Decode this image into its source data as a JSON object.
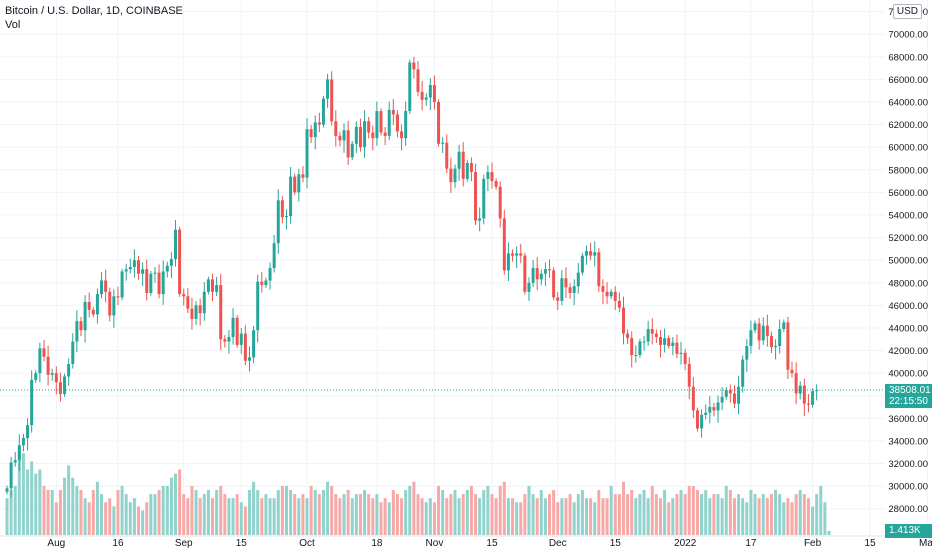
{
  "header": {
    "title": "Bitcoin / U.S. Dollar, 1D, COINBASE",
    "volume_label": "Vol",
    "currency": "USD"
  },
  "price_badge": {
    "price": "38508.01",
    "countdown": "22:15:50"
  },
  "volume_badge": {
    "value": "1.413K"
  },
  "colors": {
    "up": "#26a69a",
    "down": "#ef5350",
    "up_volume": "#90d2cc",
    "down_volume": "#f7a9a7",
    "grid": "#f0f3fa",
    "axis_text": "#131722"
  },
  "chart_data": {
    "type": "candlestick",
    "title": "Bitcoin / U.S. Dollar, 1D, COINBASE",
    "y_axis_ticks": [
      "72000.00",
      "70000.00",
      "68000.00",
      "66000.00",
      "64000.00",
      "62000.00",
      "60000.00",
      "58000.00",
      "56000.00",
      "54000.00",
      "52000.00",
      "50000.00",
      "48000.00",
      "46000.00",
      "44000.00",
      "42000.00",
      "40000.00",
      "38000.00",
      "36000.00",
      "34000.00",
      "32000.00",
      "30000.00",
      "28000.00"
    ],
    "ylim": [
      27000,
      72500
    ],
    "x_axis_ticks": [
      {
        "label": "Aug",
        "date": "2021-08-01"
      },
      {
        "label": "16",
        "date": "2021-08-16"
      },
      {
        "label": "Sep",
        "date": "2021-09-01"
      },
      {
        "label": "15",
        "date": "2021-09-15"
      },
      {
        "label": "Oct",
        "date": "2021-10-01"
      },
      {
        "label": "18",
        "date": "2021-10-18"
      },
      {
        "label": "Nov",
        "date": "2021-11-01"
      },
      {
        "label": "15",
        "date": "2021-11-15"
      },
      {
        "label": "Dec",
        "date": "2021-12-01"
      },
      {
        "label": "15",
        "date": "2021-12-15"
      },
      {
        "label": "2022",
        "date": "2022-01-01"
      },
      {
        "label": "17",
        "date": "2022-01-17"
      },
      {
        "label": "Feb",
        "date": "2022-02-01"
      },
      {
        "label": "15",
        "date": "2022-02-15"
      },
      {
        "label": "Mar",
        "date": "2022-03-01"
      }
    ],
    "first_date": "2021-07-20",
    "last_price": 38508.01,
    "close": [
      29800,
      32100,
      32300,
      33600,
      34250,
      35400,
      39400,
      40000,
      42200,
      41450,
      39850,
      40000,
      39200,
      38150,
      39700,
      40800,
      42800,
      44600,
      43800,
      46300,
      45600,
      45200,
      47000,
      48200,
      47200,
      45100,
      46800,
      46700,
      49000,
      49200,
      49400,
      50000,
      48800,
      49200,
      47100,
      48800,
      48900,
      47000,
      49000,
      49500,
      50100,
      52700,
      47000,
      46800,
      45700,
      44800,
      46000,
      45300,
      47200,
      48300,
      47200,
      47800,
      43000,
      42800,
      43200,
      44900,
      42500,
      43500,
      41100,
      41400,
      43800,
      48100,
      47800,
      48200,
      49300,
      51500,
      55300,
      53800,
      53900,
      57400,
      56000,
      57600,
      57300,
      61600,
      60900,
      62200,
      62000,
      64300,
      66000,
      62300,
      61000,
      60600,
      61500,
      59100,
      60300,
      61800,
      60000,
      62300,
      61300,
      60800,
      63200,
      61300,
      61000,
      63300,
      62900,
      61400,
      60800,
      63200,
      67500,
      66900,
      64900,
      64200,
      64400,
      65500,
      64000,
      60300,
      60400,
      58100,
      56900,
      58100,
      59600,
      57200,
      58600,
      57800,
      53500,
      53700,
      57200,
      57800,
      57000,
      56500,
      53700,
      49100,
      50600,
      50400,
      50600,
      50400,
      47200,
      48000,
      49300,
      48300,
      48800,
      49200,
      49100,
      46700,
      46400,
      48400,
      47600,
      47100,
      47700,
      48900,
      50400,
      50800,
      50400,
      50700,
      47700,
      47200,
      46800,
      47200,
      46400,
      45800,
      43500,
      43100,
      41600,
      41600,
      42800,
      42800,
      43900,
      43500,
      43200,
      42500,
      43100,
      42400,
      42700,
      41700,
      41800,
      40800,
      38800,
      36700,
      35100,
      36300,
      36500,
      37000,
      36700,
      37400,
      37900,
      38500,
      38200,
      37300,
      38800,
      41200,
      42400,
      43800,
      44400,
      42900,
      44200,
      43300,
      42300,
      42400,
      43900,
      44500,
      40300,
      40000,
      38200,
      38900,
      37300,
      37200,
      38400,
      38508
    ],
    "volume_scale_note": "relative",
    "volume_values": [
      9,
      11,
      12,
      22,
      20,
      16,
      18,
      15,
      16,
      12,
      11,
      11,
      8,
      11,
      14,
      17,
      14,
      12,
      11,
      9,
      8,
      11,
      13,
      10,
      8,
      9,
      7,
      11,
      12,
      10,
      8,
      9,
      7,
      6,
      8,
      10,
      10,
      11,
      12,
      12,
      14,
      15,
      16,
      10,
      9,
      12,
      11,
      9,
      10,
      11,
      9,
      11,
      12,
      10,
      9,
      9,
      10,
      8,
      7,
      11,
      13,
      11,
      9,
      10,
      9,
      9,
      11,
      12,
      12,
      11,
      10,
      9,
      10,
      9,
      12,
      11,
      10,
      11,
      13,
      12,
      10,
      9,
      10,
      11,
      9,
      10,
      10,
      11,
      10,
      9,
      10,
      8,
      9,
      8,
      11,
      10,
      9,
      11,
      12,
      13,
      10,
      9,
      8,
      9,
      8,
      12,
      11,
      9,
      10,
      11,
      9,
      10,
      11,
      12,
      10,
      9,
      11,
      12,
      10,
      9,
      12,
      13,
      9,
      9,
      8,
      8,
      10,
      12,
      10,
      9,
      11,
      9,
      10,
      11,
      8,
      9,
      9,
      10,
      8,
      10,
      11,
      9,
      9,
      8,
      11,
      9,
      9,
      12,
      10,
      10,
      13,
      10,
      11,
      9,
      10,
      11,
      9,
      12,
      10,
      9,
      11,
      8,
      9,
      10,
      11,
      10,
      12,
      12,
      11,
      10,
      11,
      9,
      10,
      10,
      9,
      12,
      11,
      9,
      10,
      9,
      8,
      11,
      10,
      9,
      10,
      9,
      10,
      11,
      10,
      8,
      9,
      8,
      10,
      11,
      10,
      9,
      7,
      10,
      12,
      8,
      1
    ]
  }
}
